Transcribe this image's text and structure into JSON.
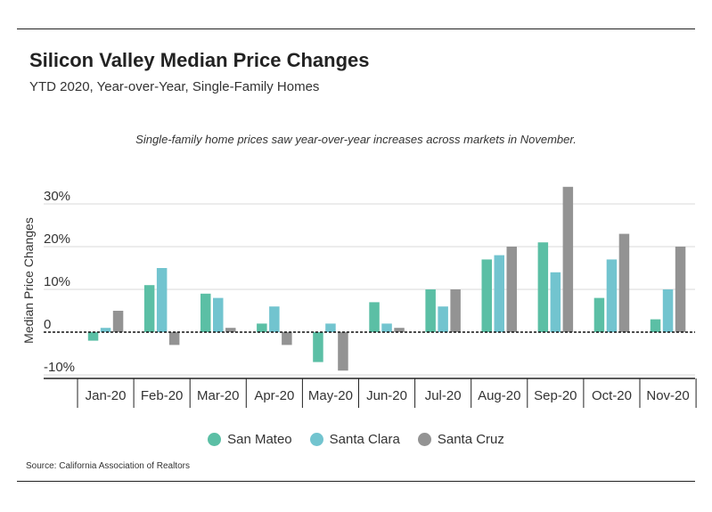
{
  "header": {
    "title": "Silicon Valley Median Price Changes",
    "subtitle": "YTD 2020, Year-over-Year, Single-Family Homes"
  },
  "annotation": "Single-family home prices saw year-over-year increases across markets in November.",
  "source": "Source:  California Association of Realtors",
  "chart_data": {
    "type": "bar",
    "title": "",
    "xlabel": "",
    "ylabel": "Median Price Changes",
    "ylim": [
      -10,
      35
    ],
    "yticks": [
      -10,
      0,
      10,
      20,
      30
    ],
    "ytick_labels": [
      "-10%",
      "0",
      "10%",
      "20%",
      "30%"
    ],
    "grid": true,
    "legend_position": "bottom",
    "categories": [
      "Jan-20",
      "Feb-20",
      "Mar-20",
      "Apr-20",
      "May-20",
      "Jun-20",
      "Jul-20",
      "Aug-20",
      "Sep-20",
      "Oct-20",
      "Nov-20"
    ],
    "series": [
      {
        "name": "San Mateo",
        "color": "#5bbfa5",
        "values": [
          -2,
          11,
          9,
          2,
          -7,
          7,
          10,
          17,
          21,
          8,
          3
        ]
      },
      {
        "name": "Santa Clara",
        "color": "#72c4cf",
        "values": [
          1,
          15,
          8,
          6,
          2,
          2,
          6,
          18,
          14,
          17,
          10
        ]
      },
      {
        "name": "Santa Cruz",
        "color": "#939393",
        "values": [
          5,
          -3,
          1,
          -3,
          -9,
          1,
          10,
          20,
          34,
          23,
          20
        ]
      }
    ]
  }
}
